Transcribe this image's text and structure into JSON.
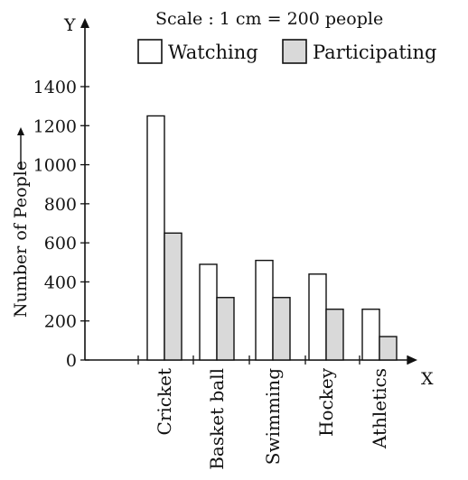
{
  "chart_data": {
    "type": "bar",
    "scale_note": "Scale : 1 cm = 200 people",
    "ylabel": "Number of People",
    "y_axis_letter": "Y",
    "x_axis_letter": "X",
    "ylim": [
      0,
      1400
    ],
    "yticks": [
      0,
      200,
      400,
      600,
      800,
      1000,
      1200,
      1400
    ],
    "categories": [
      "Cricket",
      "Basket ball",
      "Swimming",
      "Hockey",
      "Athletics"
    ],
    "series": [
      {
        "name": "Watching",
        "values": [
          1250,
          490,
          510,
          440,
          260
        ],
        "color": "#ffffff"
      },
      {
        "name": "Participating",
        "values": [
          650,
          320,
          320,
          260,
          120
        ],
        "color": "#d9d9d9"
      }
    ],
    "legend_position": "top-right",
    "grid": false
  }
}
